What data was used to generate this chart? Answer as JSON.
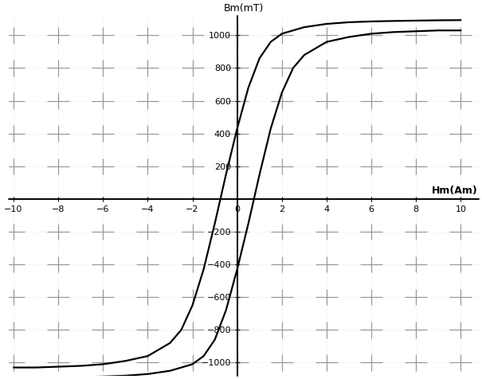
{
  "title": "Bm(mT)",
  "xlabel": "Hm(Am)",
  "xlim": [
    -10,
    10
  ],
  "ylim": [
    -1000,
    1000
  ],
  "xticks": [
    -10,
    -8,
    -6,
    -4,
    -2,
    0,
    2,
    4,
    6,
    8,
    10
  ],
  "yticks": [
    -1000,
    -800,
    -600,
    -400,
    -200,
    200,
    400,
    600,
    800,
    1000
  ],
  "grid_color": "#999999",
  "line_color": "#000000",
  "background_color": "#ffffff",
  "curve1_x": [
    -10,
    -9,
    -8,
    -7,
    -6,
    -5,
    -4,
    -3,
    -2.5,
    -2,
    -1.5,
    -1,
    -0.5,
    0,
    0.5,
    1,
    1.5,
    2,
    3,
    4,
    5,
    6,
    7,
    8,
    9,
    10
  ],
  "curve1_y": [
    -1030,
    -1030,
    -1025,
    -1020,
    -1010,
    -990,
    -960,
    -880,
    -800,
    -650,
    -430,
    -150,
    150,
    430,
    680,
    860,
    960,
    1010,
    1050,
    1070,
    1080,
    1085,
    1088,
    1090,
    1092,
    1093
  ],
  "curve2_x": [
    -10,
    -9,
    -8,
    -7,
    -6,
    -5,
    -4,
    -3,
    -2,
    -1.5,
    -1,
    -0.5,
    0,
    0.5,
    1,
    1.5,
    2,
    2.5,
    3,
    4,
    5,
    6,
    7,
    8,
    9,
    10
  ],
  "curve2_y": [
    -1093,
    -1092,
    -1090,
    -1088,
    -1085,
    -1080,
    -1070,
    -1050,
    -1010,
    -960,
    -860,
    -680,
    -430,
    -150,
    150,
    430,
    650,
    800,
    880,
    960,
    990,
    1010,
    1020,
    1025,
    1030,
    1030
  ],
  "figsize": [
    6.05,
    4.76
  ],
  "dpi": 100,
  "cross_half_x": 0.5,
  "cross_half_y": 50
}
